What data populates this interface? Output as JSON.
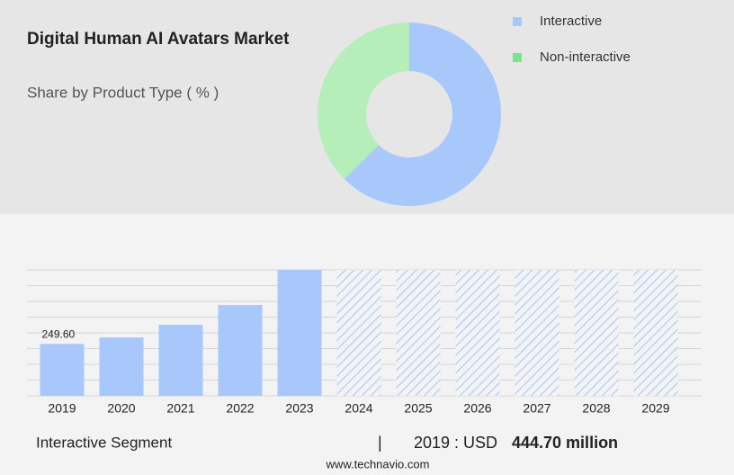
{
  "chart_data": [
    {
      "type": "donut",
      "title": "Digital Human AI Avatars Market",
      "subtitle": "Share by Product Type ( % )",
      "categories": [
        "Interactive",
        "Non-interactive"
      ],
      "values": [
        62.5,
        37.5
      ],
      "colors": [
        "#a8c8fb",
        "#b5eeb8"
      ],
      "legend_colors": [
        "#a8c8fb",
        "#79e38e"
      ]
    },
    {
      "type": "bar",
      "categories": [
        "2019",
        "2020",
        "2021",
        "2022",
        "2023",
        "2024",
        "2025",
        "2026",
        "2027",
        "2028",
        "2029"
      ],
      "values": [
        249.6,
        281,
        342,
        437,
        606,
        null,
        null,
        null,
        null,
        null,
        null
      ],
      "value_labels": [
        "249.60",
        null,
        null,
        null,
        null,
        null,
        null,
        null,
        null,
        null,
        null
      ],
      "color": "#a8c8fb",
      "ylim": [
        0,
        606
      ]
    }
  ],
  "footer": {
    "segment": "Interactive Segment",
    "separator": "|",
    "year_label": "2019 : USD",
    "value": "444.70 million",
    "source": "www.technavio.com"
  }
}
